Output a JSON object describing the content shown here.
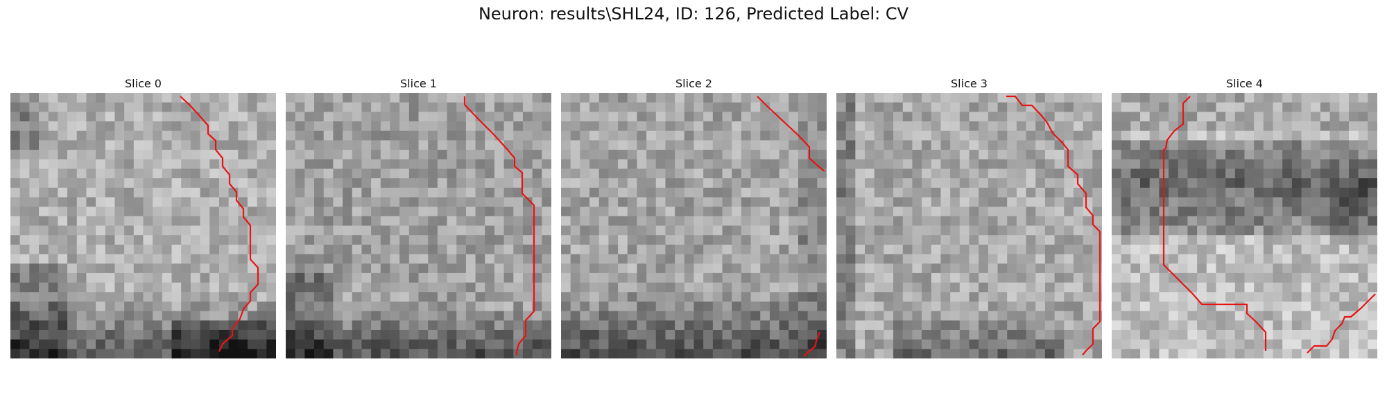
{
  "figure_title": "Neuron: results\\SHL24, ID: 126, Predicted Label: CV",
  "line_color": "#e81414",
  "panels": [
    {
      "title": "Slice 0"
    },
    {
      "title": "Slice 1"
    },
    {
      "title": "Slice 2"
    },
    {
      "title": "Slice 3"
    },
    {
      "title": "Slice 4"
    }
  ]
}
